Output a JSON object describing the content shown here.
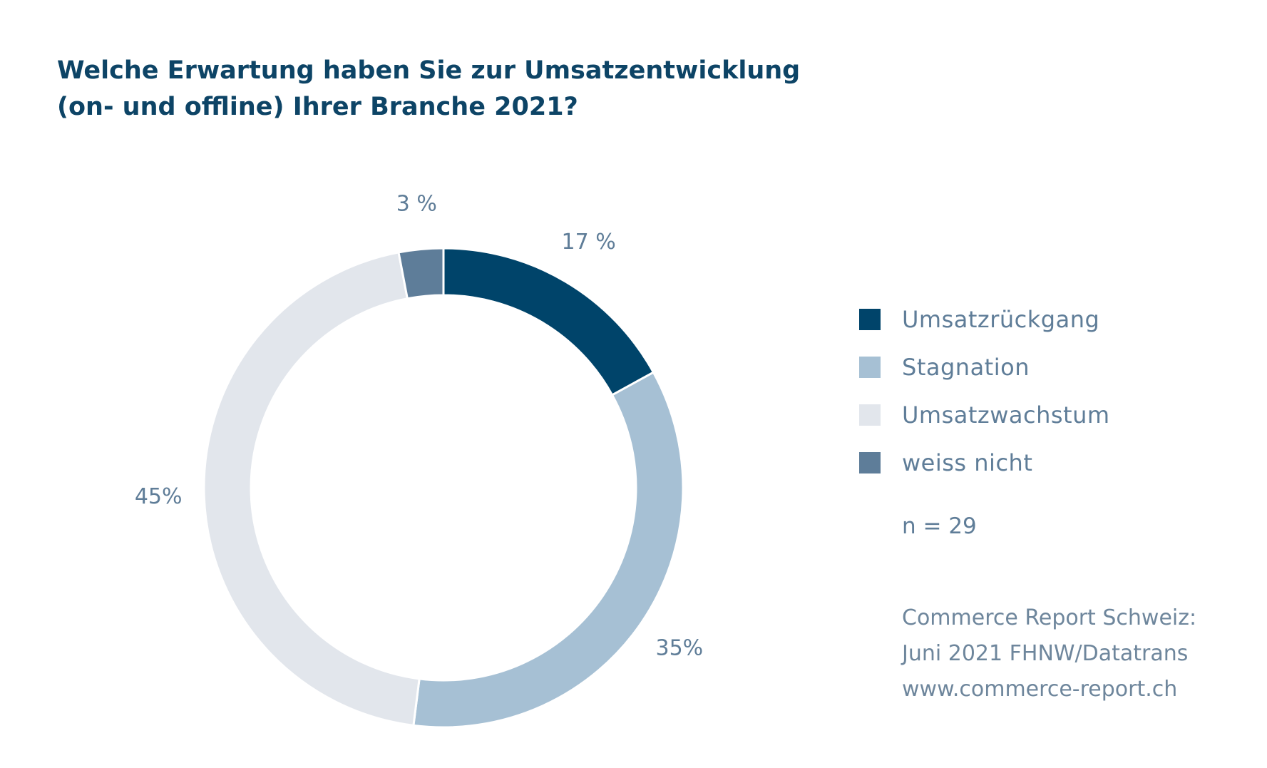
{
  "chart_data": {
    "type": "pie",
    "title": "Welche Erwartung haben Sie zur Umsatzentwicklung (on- und offline) Ihrer Branche 2021?",
    "title_lines": [
      "Welche Erwartung haben Sie zur Umsatzentwicklung",
      "(on- und offline) Ihrer Branche 2021?"
    ],
    "donut": true,
    "categories": [
      "Umsatzrückgang",
      "Stagnation",
      "Umsatzwachstum",
      "weiss nicht"
    ],
    "values": [
      17,
      35,
      45,
      3
    ],
    "data_labels": [
      "17 %",
      "35%",
      "45%",
      "3 %"
    ],
    "colors": [
      "#00446a",
      "#a6c0d4",
      "#e2e6ec",
      "#5e7d99"
    ],
    "legend_position": "right",
    "n_note": "n = 29",
    "source_lines": [
      "Commerce Report Schweiz:",
      "Juni 2021 FHNW/Datatrans",
      "www.commerce-report.ch"
    ]
  }
}
